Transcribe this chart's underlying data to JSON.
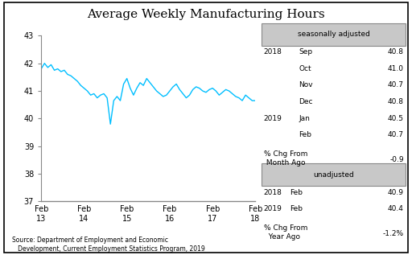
{
  "title": "Average Weekly Manufacturing Hours",
  "line_color": "#00BFFF",
  "x_tick_labels": [
    "Feb\n13",
    "Feb\n14",
    "Feb\n15",
    "Feb\n16",
    "Feb\n17",
    "Feb\n18"
  ],
  "ylim": [
    37,
    43
  ],
  "yticks": [
    37,
    38,
    39,
    40,
    41,
    42,
    43
  ],
  "source_text": "Source: Department of Employment and Economic\n   Development, Current Employment Statistics Program, 2019",
  "seasonally_adjusted_label": "seasonally adjusted",
  "unadjusted_label": "unadjusted",
  "sa_2018": [
    [
      "Sep",
      "40.8"
    ],
    [
      "Oct",
      "41.0"
    ],
    [
      "Nov",
      "40.7"
    ],
    [
      "Dec",
      "40.8"
    ]
  ],
  "sa_2019": [
    [
      "Jan",
      "40.5"
    ],
    [
      "Feb",
      "40.7"
    ]
  ],
  "sa_pct_chg": "-0.9",
  "ua_rows": [
    [
      "2018",
      "Feb",
      "40.9"
    ],
    [
      "2019",
      "Feb",
      "40.4"
    ]
  ],
  "ua_pct_chg": "-1.2%",
  "y_values": [
    41.8,
    42.0,
    41.85,
    41.95,
    41.75,
    41.8,
    41.7,
    41.75,
    41.6,
    41.55,
    41.45,
    41.35,
    41.2,
    41.1,
    41.0,
    40.85,
    40.9,
    40.75,
    40.85,
    40.9,
    40.75,
    39.8,
    40.65,
    40.8,
    40.65,
    41.25,
    41.45,
    41.1,
    40.85,
    41.1,
    41.3,
    41.2,
    41.45,
    41.3,
    41.15,
    41.0,
    40.9,
    40.8,
    40.85,
    41.0,
    41.15,
    41.25,
    41.05,
    40.9,
    40.75,
    40.85,
    41.05,
    41.15,
    41.1,
    41.0,
    40.95,
    41.05,
    41.1,
    41.0,
    40.85,
    40.95,
    41.05,
    41.0,
    40.9,
    40.8,
    40.75,
    40.65,
    40.85,
    40.75,
    40.65,
    40.65
  ]
}
